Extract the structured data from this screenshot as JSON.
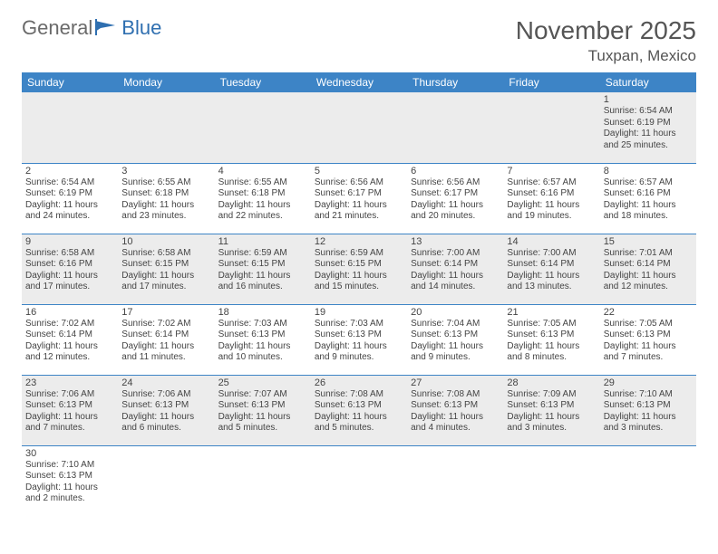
{
  "logo": {
    "text1": "General",
    "text2": "Blue"
  },
  "title": "November 2025",
  "location": "Tuxpan, Mexico",
  "dayHeaders": [
    "Sunday",
    "Monday",
    "Tuesday",
    "Wednesday",
    "Thursday",
    "Friday",
    "Saturday"
  ],
  "header_bg": "#3d84c6",
  "header_fg": "#ffffff",
  "row_shade": "#ececec",
  "rule_color": "#3d84c6",
  "weeks": [
    {
      "shade": true,
      "days": [
        null,
        null,
        null,
        null,
        null,
        null,
        {
          "n": "1",
          "sr": "6:54 AM",
          "ss": "6:19 PM",
          "dl": "11 hours and 25 minutes."
        }
      ]
    },
    {
      "shade": false,
      "days": [
        {
          "n": "2",
          "sr": "6:54 AM",
          "ss": "6:19 PM",
          "dl": "11 hours and 24 minutes."
        },
        {
          "n": "3",
          "sr": "6:55 AM",
          "ss": "6:18 PM",
          "dl": "11 hours and 23 minutes."
        },
        {
          "n": "4",
          "sr": "6:55 AM",
          "ss": "6:18 PM",
          "dl": "11 hours and 22 minutes."
        },
        {
          "n": "5",
          "sr": "6:56 AM",
          "ss": "6:17 PM",
          "dl": "11 hours and 21 minutes."
        },
        {
          "n": "6",
          "sr": "6:56 AM",
          "ss": "6:17 PM",
          "dl": "11 hours and 20 minutes."
        },
        {
          "n": "7",
          "sr": "6:57 AM",
          "ss": "6:16 PM",
          "dl": "11 hours and 19 minutes."
        },
        {
          "n": "8",
          "sr": "6:57 AM",
          "ss": "6:16 PM",
          "dl": "11 hours and 18 minutes."
        }
      ]
    },
    {
      "shade": true,
      "days": [
        {
          "n": "9",
          "sr": "6:58 AM",
          "ss": "6:16 PM",
          "dl": "11 hours and 17 minutes."
        },
        {
          "n": "10",
          "sr": "6:58 AM",
          "ss": "6:15 PM",
          "dl": "11 hours and 17 minutes."
        },
        {
          "n": "11",
          "sr": "6:59 AM",
          "ss": "6:15 PM",
          "dl": "11 hours and 16 minutes."
        },
        {
          "n": "12",
          "sr": "6:59 AM",
          "ss": "6:15 PM",
          "dl": "11 hours and 15 minutes."
        },
        {
          "n": "13",
          "sr": "7:00 AM",
          "ss": "6:14 PM",
          "dl": "11 hours and 14 minutes."
        },
        {
          "n": "14",
          "sr": "7:00 AM",
          "ss": "6:14 PM",
          "dl": "11 hours and 13 minutes."
        },
        {
          "n": "15",
          "sr": "7:01 AM",
          "ss": "6:14 PM",
          "dl": "11 hours and 12 minutes."
        }
      ]
    },
    {
      "shade": false,
      "days": [
        {
          "n": "16",
          "sr": "7:02 AM",
          "ss": "6:14 PM",
          "dl": "11 hours and 12 minutes."
        },
        {
          "n": "17",
          "sr": "7:02 AM",
          "ss": "6:14 PM",
          "dl": "11 hours and 11 minutes."
        },
        {
          "n": "18",
          "sr": "7:03 AM",
          "ss": "6:13 PM",
          "dl": "11 hours and 10 minutes."
        },
        {
          "n": "19",
          "sr": "7:03 AM",
          "ss": "6:13 PM",
          "dl": "11 hours and 9 minutes."
        },
        {
          "n": "20",
          "sr": "7:04 AM",
          "ss": "6:13 PM",
          "dl": "11 hours and 9 minutes."
        },
        {
          "n": "21",
          "sr": "7:05 AM",
          "ss": "6:13 PM",
          "dl": "11 hours and 8 minutes."
        },
        {
          "n": "22",
          "sr": "7:05 AM",
          "ss": "6:13 PM",
          "dl": "11 hours and 7 minutes."
        }
      ]
    },
    {
      "shade": true,
      "days": [
        {
          "n": "23",
          "sr": "7:06 AM",
          "ss": "6:13 PM",
          "dl": "11 hours and 7 minutes."
        },
        {
          "n": "24",
          "sr": "7:06 AM",
          "ss": "6:13 PM",
          "dl": "11 hours and 6 minutes."
        },
        {
          "n": "25",
          "sr": "7:07 AM",
          "ss": "6:13 PM",
          "dl": "11 hours and 5 minutes."
        },
        {
          "n": "26",
          "sr": "7:08 AM",
          "ss": "6:13 PM",
          "dl": "11 hours and 5 minutes."
        },
        {
          "n": "27",
          "sr": "7:08 AM",
          "ss": "6:13 PM",
          "dl": "11 hours and 4 minutes."
        },
        {
          "n": "28",
          "sr": "7:09 AM",
          "ss": "6:13 PM",
          "dl": "11 hours and 3 minutes."
        },
        {
          "n": "29",
          "sr": "7:10 AM",
          "ss": "6:13 PM",
          "dl": "11 hours and 3 minutes."
        }
      ]
    },
    {
      "shade": false,
      "days": [
        {
          "n": "30",
          "sr": "7:10 AM",
          "ss": "6:13 PM",
          "dl": "11 hours and 2 minutes."
        },
        null,
        null,
        null,
        null,
        null,
        null
      ]
    }
  ]
}
